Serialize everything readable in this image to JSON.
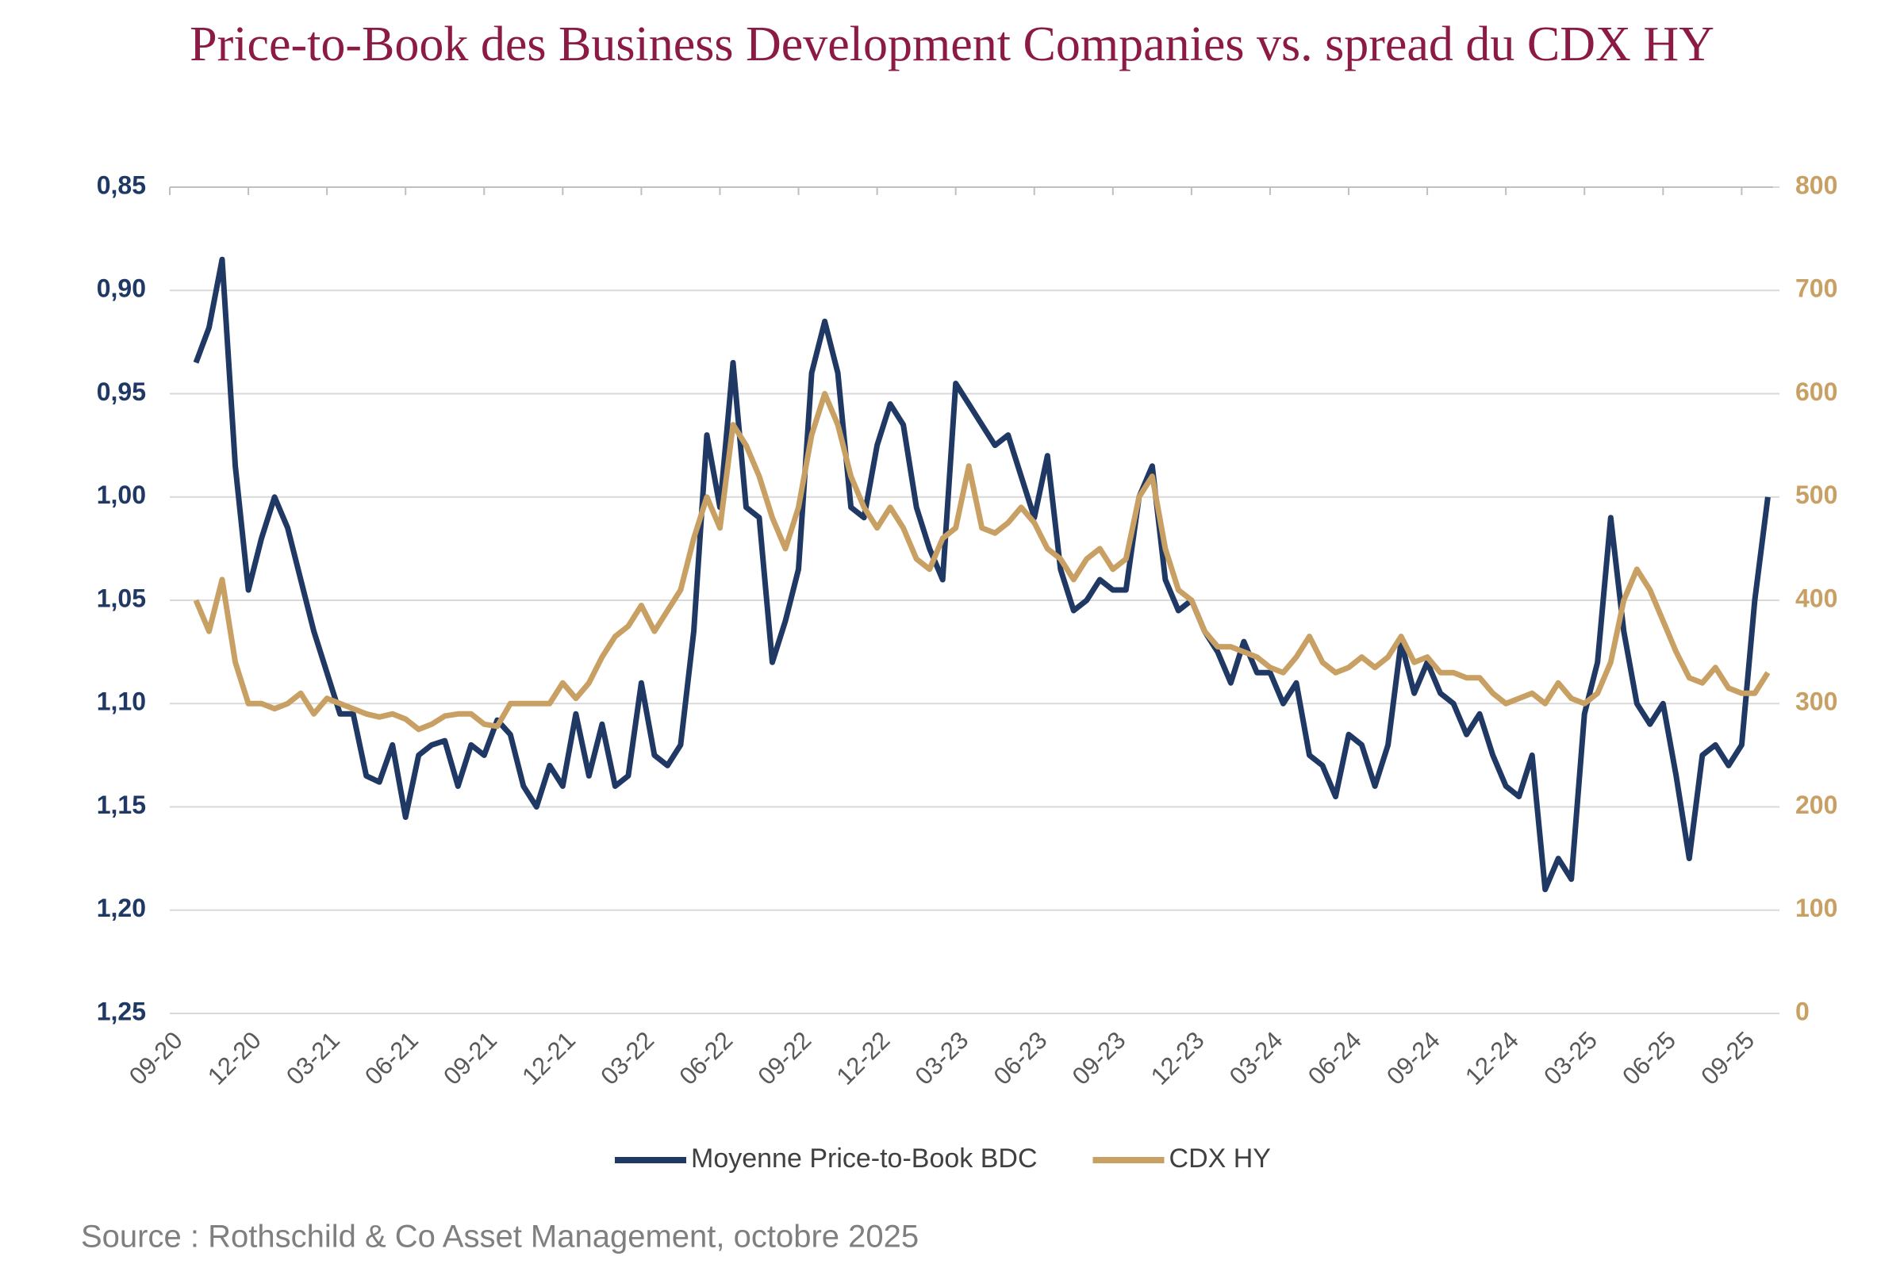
{
  "chart_data": {
    "type": "line",
    "title": "Price-to-Book des Business Development Companies vs. spread du CDX HY",
    "source": "Source : Rothschild & Co Asset Management, octobre 2025",
    "categories": [
      "09-20",
      null,
      null,
      null,
      null,
      null,
      "12-20",
      null,
      null,
      null,
      null,
      null,
      "03-21",
      null,
      null,
      null,
      null,
      null,
      "06-21",
      null,
      null,
      null,
      null,
      null,
      "09-21",
      null,
      null,
      null,
      null,
      null,
      "12-21",
      null,
      null,
      null,
      null,
      null,
      "03-22",
      null,
      null,
      null,
      null,
      null,
      "06-22",
      null,
      null,
      null,
      null,
      null,
      "09-22",
      null,
      null,
      null,
      null,
      null,
      "12-22",
      null,
      null,
      null,
      null,
      null,
      "03-23",
      null,
      null,
      null,
      null,
      null,
      "06-23",
      null,
      null,
      null,
      null,
      null,
      "09-23",
      null,
      null,
      null,
      null,
      null,
      "12-23",
      null,
      null,
      null,
      null,
      null,
      "03-24",
      null,
      null,
      null,
      null,
      null,
      "06-24",
      null,
      null,
      null,
      null,
      null,
      "09-24",
      null,
      null,
      null,
      null,
      null,
      "12-24",
      null,
      null,
      null,
      null,
      null,
      "03-25",
      null,
      null,
      null,
      null,
      null,
      "06-25",
      null,
      null,
      null,
      null,
      null,
      "09-25",
      null,
      null
    ],
    "series": [
      {
        "name": "Moyenne Price-to-Book BDC",
        "color": "#1f3864",
        "axis": "y",
        "values": [
          null,
          null,
          0.935,
          0.918,
          0.885,
          0.985,
          1.045,
          1.02,
          1.0,
          1.015,
          1.04,
          1.065,
          1.085,
          1.105,
          1.105,
          1.135,
          1.138,
          1.12,
          1.155,
          1.125,
          1.12,
          1.118,
          1.14,
          1.12,
          1.125,
          1.108,
          1.115,
          1.14,
          1.15,
          1.13,
          1.14,
          1.105,
          1.135,
          1.11,
          1.14,
          1.135,
          1.09,
          1.125,
          1.13,
          1.12,
          1.065,
          0.97,
          1.005,
          0.935,
          1.005,
          1.01,
          1.08,
          1.06,
          1.035,
          0.94,
          0.915,
          0.94,
          1.005,
          1.01,
          0.975,
          0.955,
          0.965,
          1.005,
          1.025,
          1.04,
          0.945,
          0.955,
          0.965,
          0.975,
          0.97,
          0.99,
          1.01,
          0.98,
          1.035,
          1.055,
          1.05,
          1.04,
          1.045,
          1.045,
          1.0,
          0.985,
          1.04,
          1.055,
          1.05,
          1.065,
          1.075,
          1.09,
          1.07,
          1.085,
          1.085,
          1.1,
          1.09,
          1.125,
          1.13,
          1.145,
          1.115,
          1.12,
          1.14,
          1.12,
          1.07,
          1.095,
          1.08,
          1.095,
          1.1,
          1.115,
          1.105,
          1.125,
          1.14,
          1.145,
          1.125,
          1.19,
          1.175,
          1.185,
          1.105,
          1.08,
          1.01,
          1.065,
          1.1,
          1.11,
          1.1,
          1.135,
          1.175,
          1.125,
          1.12,
          1.13,
          1.12,
          1.05,
          1.0
        ]
      },
      {
        "name": "CDX HY",
        "color": "#c9a063",
        "axis": "y2",
        "values": [
          null,
          null,
          400,
          370,
          420,
          340,
          300,
          300,
          295,
          300,
          310,
          290,
          305,
          300,
          295,
          290,
          287,
          290,
          285,
          275,
          280,
          288,
          290,
          290,
          280,
          278,
          300,
          300,
          300,
          300,
          320,
          305,
          320,
          345,
          365,
          375,
          395,
          370,
          390,
          410,
          460,
          500,
          470,
          570,
          550,
          520,
          480,
          450,
          490,
          560,
          600,
          570,
          520,
          490,
          470,
          490,
          470,
          440,
          430,
          460,
          470,
          530,
          470,
          465,
          475,
          490,
          475,
          450,
          440,
          420,
          440,
          450,
          430,
          440,
          500,
          520,
          450,
          410,
          400,
          370,
          355,
          355,
          350,
          345,
          335,
          330,
          345,
          365,
          340,
          330,
          335,
          345,
          335,
          345,
          365,
          340,
          345,
          330,
          330,
          325,
          325,
          310,
          300,
          305,
          310,
          300,
          320,
          305,
          300,
          310,
          340,
          400,
          430,
          410,
          380,
          350,
          325,
          320,
          335,
          315,
          310,
          310,
          330
        ]
      }
    ],
    "ylim": [
      0.85,
      1.25
    ],
    "y_reversed": true,
    "yticks": [
      {
        "value": 0.85,
        "label": "0,85"
      },
      {
        "value": 0.9,
        "label": "0,90"
      },
      {
        "value": 0.95,
        "label": "0,95"
      },
      {
        "value": 1.0,
        "label": "1,00"
      },
      {
        "value": 1.05,
        "label": "1,05"
      },
      {
        "value": 1.1,
        "label": "1,10"
      },
      {
        "value": 1.15,
        "label": "1,15"
      },
      {
        "value": 1.2,
        "label": "1,20"
      },
      {
        "value": 1.25,
        "label": "1,25"
      }
    ],
    "y2lim": [
      0,
      800
    ],
    "y2ticks": [
      0,
      100,
      200,
      300,
      400,
      500,
      600,
      700,
      800
    ],
    "grid": true,
    "legend": "bottom"
  }
}
